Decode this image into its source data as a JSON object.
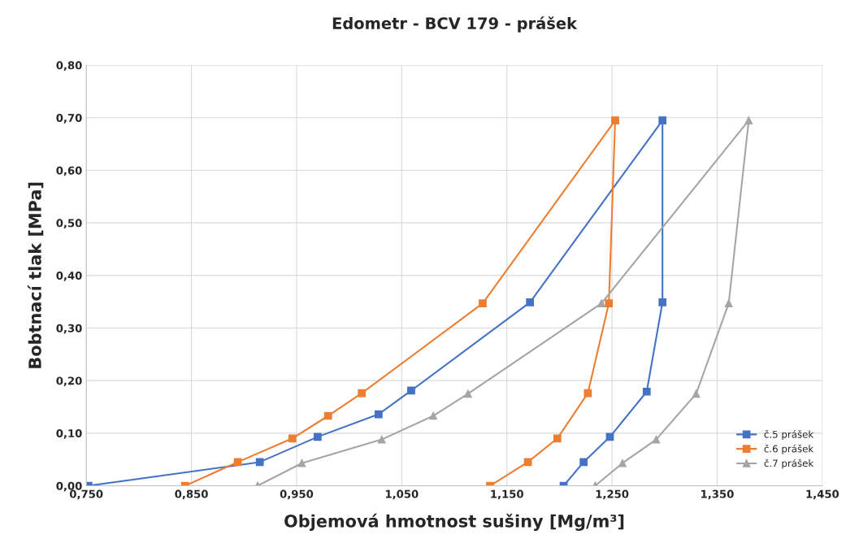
{
  "chart_data": {
    "type": "line",
    "title": "Edometr - BCV 179 - prášek",
    "xlabel": "Objemová hmotnost sušiny [Mg/m³]",
    "ylabel": "Bobtnací tlak [MPa]",
    "xlim": [
      0.75,
      1.45
    ],
    "ylim": [
      0,
      0.8
    ],
    "xticks": [
      {
        "value": 0.75,
        "label": "0,750"
      },
      {
        "value": 0.85,
        "label": "0,850"
      },
      {
        "value": 0.95,
        "label": "0,950"
      },
      {
        "value": 1.05,
        "label": "1,050"
      },
      {
        "value": 1.15,
        "label": "1,150"
      },
      {
        "value": 1.25,
        "label": "1,250"
      },
      {
        "value": 1.35,
        "label": "1,350"
      },
      {
        "value": 1.45,
        "label": "1,450"
      }
    ],
    "yticks": [
      {
        "value": 0,
        "label": "0,00"
      },
      {
        "value": 0.1,
        "label": "0,10"
      },
      {
        "value": 0.2,
        "label": "0,20"
      },
      {
        "value": 0.3,
        "label": "0,30"
      },
      {
        "value": 0.4,
        "label": "0,40"
      },
      {
        "value": 0.5,
        "label": "0,50"
      },
      {
        "value": 0.6,
        "label": "0,60"
      },
      {
        "value": 0.7,
        "label": "0,70"
      },
      {
        "value": 0.8,
        "label": "0,80"
      }
    ],
    "grid": true,
    "legend": "bottom right",
    "line_style": "solid",
    "series": [
      {
        "name": "č.5 prášek",
        "color": "#4472c4",
        "marker": "square",
        "x": [
          0.752,
          0.915,
          0.97,
          1.028,
          1.059,
          1.172,
          1.298,
          1.298,
          1.283,
          1.248,
          1.223,
          1.204
        ],
        "values": [
          0.0,
          0.045,
          0.093,
          0.136,
          0.181,
          0.349,
          0.695,
          0.349,
          0.179,
          0.093,
          0.045,
          0.0
        ]
      },
      {
        "name": "č.6 prášek",
        "color": "#ed7d31",
        "marker": "square",
        "x": [
          0.844,
          0.894,
          0.946,
          0.98,
          1.012,
          1.127,
          1.253,
          1.247,
          1.227,
          1.198,
          1.17,
          1.134
        ],
        "values": [
          0.0,
          0.045,
          0.09,
          0.133,
          0.176,
          0.347,
          0.695,
          0.347,
          0.176,
          0.09,
          0.045,
          0.0
        ]
      },
      {
        "name": "č.7 prášek",
        "color": "#a5a5a5",
        "marker": "triangle",
        "x": [
          0.913,
          0.955,
          1.031,
          1.08,
          1.113,
          1.24,
          1.38,
          1.361,
          1.33,
          1.292,
          1.26,
          1.234
        ],
        "values": [
          0.0,
          0.043,
          0.088,
          0.133,
          0.175,
          0.347,
          0.695,
          0.347,
          0.175,
          0.088,
          0.043,
          0.0
        ]
      }
    ]
  }
}
